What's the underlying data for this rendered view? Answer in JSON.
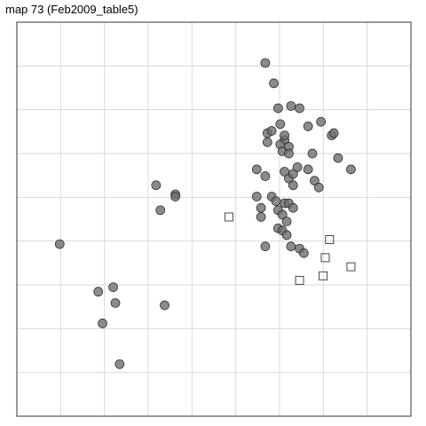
{
  "chart_data": {
    "type": "scatter",
    "title": "map 73 (Feb2009_table5)",
    "xlabel": "",
    "ylabel": "",
    "xlim": [
      0,
      92
    ],
    "ylim": [
      0,
      87
    ],
    "grid": true,
    "legend": "none",
    "colors": {
      "panel_border": "#333333",
      "grid": "#d9d9d9",
      "point_fill": "#6e6e6e",
      "point_stroke": "#222222",
      "square_stroke": "#333333"
    },
    "series": [
      {
        "name": "circles",
        "marker": "circle",
        "points": [
          [
            58,
            78
          ],
          [
            60,
            73.5
          ],
          [
            61,
            68
          ],
          [
            64,
            68.5
          ],
          [
            66,
            68
          ],
          [
            58.5,
            62.5
          ],
          [
            59.5,
            63
          ],
          [
            61.5,
            64.5
          ],
          [
            62.5,
            61
          ],
          [
            62.5,
            62
          ],
          [
            58.5,
            60.5
          ],
          [
            61.5,
            60
          ],
          [
            62,
            58.5
          ],
          [
            63.5,
            59.5
          ],
          [
            63.5,
            58
          ],
          [
            56,
            54.5
          ],
          [
            58,
            53
          ],
          [
            62.5,
            54
          ],
          [
            63.5,
            52.5
          ],
          [
            64.5,
            51
          ],
          [
            64.5,
            53.5
          ],
          [
            65.5,
            55
          ],
          [
            56,
            48.5
          ],
          [
            57,
            46
          ],
          [
            59.5,
            48.5
          ],
          [
            60.5,
            47.5
          ],
          [
            61,
            45.5
          ],
          [
            62.5,
            47
          ],
          [
            63.5,
            47
          ],
          [
            64.5,
            46
          ],
          [
            57,
            44
          ],
          [
            62,
            44.5
          ],
          [
            63,
            43
          ],
          [
            61,
            41.5
          ],
          [
            62,
            41
          ],
          [
            63,
            40
          ],
          [
            58,
            37.5
          ],
          [
            64,
            37.5
          ],
          [
            66,
            37
          ],
          [
            67,
            36
          ],
          [
            68,
            64
          ],
          [
            71,
            65
          ],
          [
            73.5,
            62
          ],
          [
            74,
            62.5
          ],
          [
            75,
            57
          ],
          [
            78,
            54.5
          ],
          [
            69,
            58
          ],
          [
            68,
            54.5
          ],
          [
            69.5,
            52
          ],
          [
            70.5,
            50.5
          ],
          [
            32.5,
            51
          ],
          [
            37,
            49
          ],
          [
            37,
            48.5
          ],
          [
            33.5,
            45.5
          ],
          [
            10,
            38
          ],
          [
            19,
            27.5
          ],
          [
            22.5,
            28.5
          ],
          [
            23,
            25
          ],
          [
            20,
            20.5
          ],
          [
            34.5,
            24.5
          ],
          [
            24,
            11.5
          ]
        ]
      },
      {
        "name": "squares",
        "marker": "square",
        "points": [
          [
            49.5,
            44
          ],
          [
            73,
            39
          ],
          [
            72,
            35
          ],
          [
            78,
            33
          ],
          [
            71.5,
            31
          ],
          [
            66,
            30
          ]
        ]
      }
    ]
  }
}
